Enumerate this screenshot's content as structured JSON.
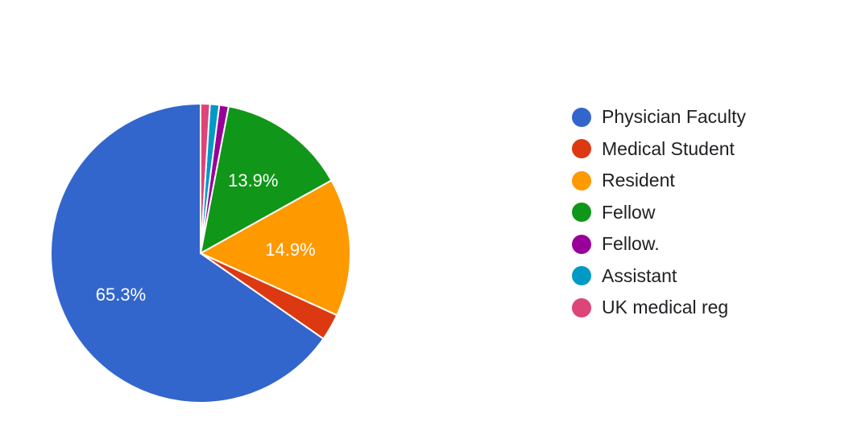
{
  "chart_data": {
    "type": "pie",
    "start_angle_deg": 90,
    "direction": "counterclockwise",
    "legend_position": "right",
    "slices": [
      {
        "label": "Physician Faculty",
        "value": 65.3,
        "color": "#3366cc",
        "label_text": "65.3%"
      },
      {
        "label": "Medical Student",
        "value": 2.9,
        "color": "#dc3912",
        "label_text": ""
      },
      {
        "label": "Resident",
        "value": 14.9,
        "color": "#ff9900",
        "label_text": "14.9%"
      },
      {
        "label": "Fellow",
        "value": 13.9,
        "color": "#109618",
        "label_text": "13.9%"
      },
      {
        "label": "Fellow.",
        "value": 1.0,
        "color": "#990099",
        "label_text": ""
      },
      {
        "label": "Assistant",
        "value": 1.0,
        "color": "#0099c6",
        "label_text": ""
      },
      {
        "label": "UK medical reg",
        "value": 1.0,
        "color": "#dd4477",
        "label_text": ""
      }
    ]
  }
}
